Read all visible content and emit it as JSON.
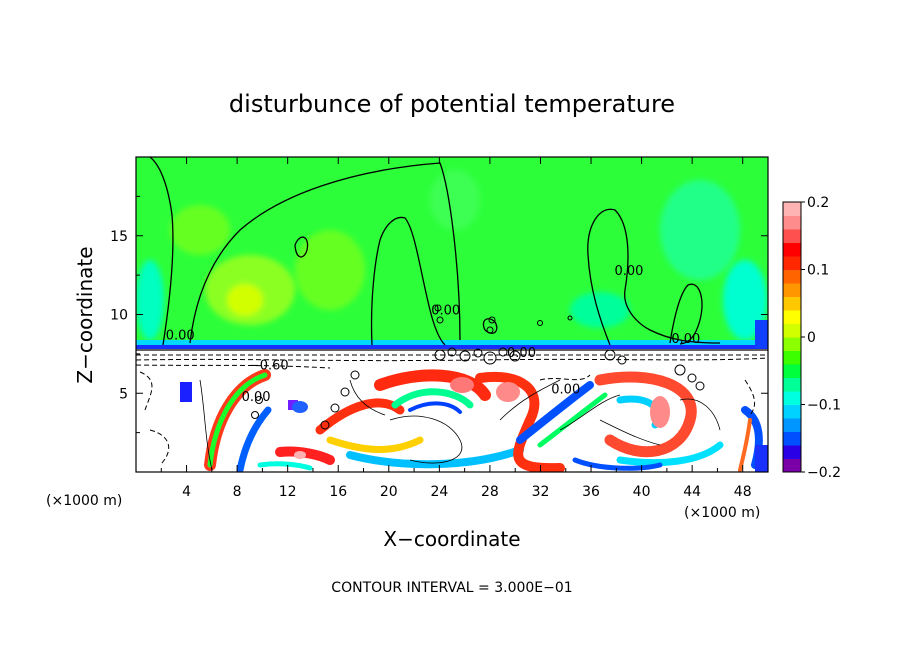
{
  "chart_data": {
    "type": "heatmap",
    "title": "disturbunce of potential temperature",
    "xlabel": "X−coordinate",
    "ylabel": "Z−coordinate",
    "x_unit_left": "(×1000 m)",
    "x_unit_right": "(×1000 m)",
    "footer": "CONTOUR INTERVAL = 3.000E−01",
    "xlim": [
      0,
      50
    ],
    "ylim": [
      0,
      20
    ],
    "x_ticks": [
      4,
      8,
      12,
      16,
      20,
      24,
      28,
      32,
      36,
      40,
      44,
      48
    ],
    "x_tick_labels": [
      "4",
      "8",
      "12",
      "16",
      "20",
      "24",
      "28",
      "32",
      "36",
      "40",
      "44",
      "48"
    ],
    "y_ticks": [
      5,
      10,
      15
    ],
    "y_tick_labels": [
      "5",
      "10",
      "15"
    ],
    "colorbar": {
      "range": [
        -0.2,
        0.2
      ],
      "tick_values": [
        -0.2,
        -0.1,
        0,
        0.1,
        0.2
      ],
      "tick_labels": [
        "−0.2",
        "−0.1",
        "0",
        "0.1",
        "0.2"
      ],
      "colors": [
        "#7b00a8",
        "#2a00e6",
        "#0050ff",
        "#0096ff",
        "#00d2ff",
        "#00ffe0",
        "#00ff96",
        "#00ff3c",
        "#3cff00",
        "#8cff00",
        "#d2ff00",
        "#ffff00",
        "#ffc800",
        "#ff9600",
        "#ff6400",
        "#ff2800",
        "#ff0000",
        "#ff5050",
        "#ff8c8c",
        "#ffb4b4"
      ]
    },
    "contour_labels": [
      {
        "x": 3.5,
        "z": 8.4,
        "text": "0.00"
      },
      {
        "x": 10.5,
        "z": 6.5,
        "text": "−0.60"
      },
      {
        "x": 9.5,
        "z": 4.5,
        "text": "0.00"
      },
      {
        "x": 24.5,
        "z": 10.0,
        "text": "0.00"
      },
      {
        "x": 30.5,
        "z": 7.3,
        "text": "0.00"
      },
      {
        "x": 34.0,
        "z": 5.0,
        "text": "0.00"
      },
      {
        "x": 39.0,
        "z": 12.5,
        "text": "0.00"
      },
      {
        "x": 43.5,
        "z": 8.2,
        "text": "0.00"
      }
    ]
  }
}
